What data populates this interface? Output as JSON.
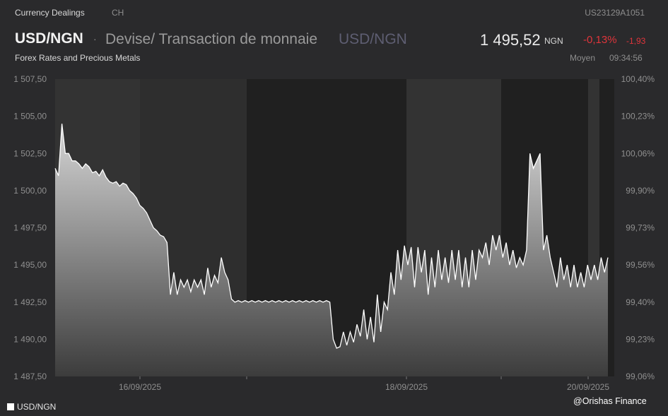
{
  "header": {
    "app_title": "Currency Dealings",
    "market": "CH",
    "isin": "US23129A1051",
    "symbol": "USD/NGN",
    "separator": "·",
    "subtitle": "Devise/ Transaction de monnaie",
    "symbol_secondary": "USD/NGN",
    "price": "1 495,52",
    "currency": "NGN",
    "change_pct": "-0,13%",
    "change_abs": "-1,93",
    "category": "Forex Rates and Precious Metals",
    "price_type": "Moyen",
    "time": "09:34:56"
  },
  "legend": {
    "series_label": "USD/NGN"
  },
  "watermark": "@Orishas Finance",
  "colors": {
    "background": "#2a2a2c",
    "plot_light_band": "#333333",
    "plot_dark_band": "#202020",
    "line": "#ffffff",
    "negative": "#e0353b"
  },
  "chart_data": {
    "type": "area",
    "series_name": "USD/NGN",
    "y_axis_left": {
      "ticks": [
        "1 507,50",
        "1 505,00",
        "1 502,50",
        "1 500,00",
        "1 497,50",
        "1 495,00",
        "1 492,50",
        "1 490,00",
        "1 487,50"
      ],
      "ylim": [
        1487.5,
        1507.5
      ]
    },
    "y_axis_right": {
      "ticks": [
        "100,40%",
        "100,23%",
        "100,06%",
        "99,90%",
        "99,73%",
        "99,56%",
        "99,40%",
        "99,23%",
        "99,06%"
      ]
    },
    "x_axis": {
      "ticks": [
        "16/09/2025",
        "18/09/2025",
        "20/09/2025"
      ],
      "period": [
        "15/09/2025",
        "20/09/2025"
      ]
    },
    "grid": false,
    "legend_position": "bottom-left",
    "values": [
      1501.5,
      1501.0,
      1504.5,
      1502.5,
      1502.5,
      1502.0,
      1502.0,
      1501.8,
      1501.5,
      1501.8,
      1501.6,
      1501.2,
      1501.3,
      1501.0,
      1501.4,
      1500.9,
      1500.6,
      1500.5,
      1500.6,
      1500.3,
      1500.5,
      1500.4,
      1500.0,
      1499.8,
      1499.5,
      1499.0,
      1498.8,
      1498.5,
      1498.0,
      1497.5,
      1497.3,
      1497.0,
      1496.9,
      1496.5,
      1493.0,
      1494.5,
      1493.0,
      1494.0,
      1493.5,
      1494.0,
      1493.2,
      1494.0,
      1493.5,
      1494.0,
      1493.0,
      1494.8,
      1493.5,
      1494.3,
      1493.8,
      1495.5,
      1494.5,
      1494.0,
      1492.7,
      1492.5,
      1492.6,
      1492.5,
      1492.6,
      1492.5,
      1492.6,
      1492.5,
      1492.6,
      1492.5,
      1492.6,
      1492.5,
      1492.6,
      1492.5,
      1492.6,
      1492.5,
      1492.6,
      1492.5,
      1492.6,
      1492.5,
      1492.6,
      1492.5,
      1492.6,
      1492.5,
      1492.6,
      1492.5,
      1492.6,
      1492.5,
      1492.6,
      1492.5,
      1490.0,
      1489.4,
      1489.5,
      1490.5,
      1489.6,
      1490.5,
      1489.8,
      1491.0,
      1490.2,
      1492.0,
      1490.0,
      1491.5,
      1489.8,
      1493.0,
      1490.5,
      1492.5,
      1492.0,
      1494.5,
      1493.0,
      1496.0,
      1494.0,
      1496.3,
      1495.0,
      1496.2,
      1493.5,
      1496.2,
      1494.5,
      1496.0,
      1493.0,
      1495.5,
      1493.5,
      1496.0,
      1494.0,
      1495.5,
      1493.8,
      1496.0,
      1494.0,
      1496.0,
      1493.5,
      1495.5,
      1493.5,
      1496.0,
      1494.0,
      1496.0,
      1495.5,
      1496.5,
      1495.0,
      1497.0,
      1496.0,
      1497.0,
      1495.5,
      1496.5,
      1495.0,
      1496.0,
      1494.8,
      1495.5,
      1495.0,
      1496.0,
      1502.5,
      1501.5,
      1502.0,
      1502.5,
      1496.0,
      1497.0,
      1495.5,
      1494.5,
      1493.5,
      1495.5,
      1494.0,
      1495.0,
      1493.5,
      1495.0,
      1493.5,
      1494.5,
      1493.5,
      1495.0,
      1494.0,
      1495.0,
      1494.0,
      1495.5,
      1494.5,
      1495.5
    ]
  }
}
